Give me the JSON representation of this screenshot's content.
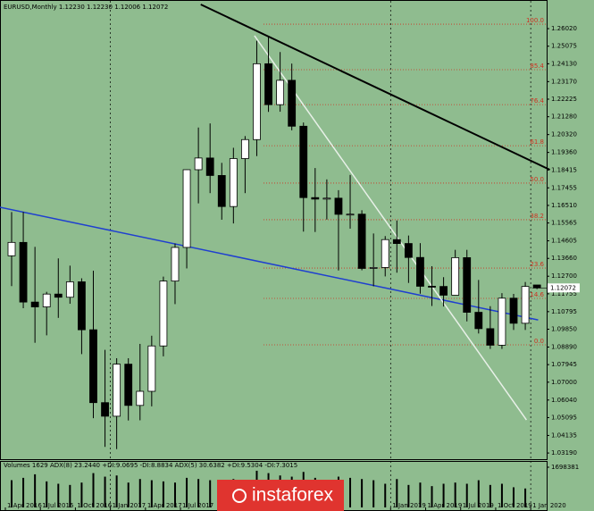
{
  "chart_data": {
    "type": "candlestick",
    "header": "EURUSD,Monthly  1.12230 1.12230 1.12006 1.12072",
    "categories": [
      "1 Apr 2016",
      null,
      null,
      "1 Jul 2016",
      null,
      null,
      "1 Oct 2016",
      null,
      null,
      "1 Jan 2017",
      null,
      null,
      "1 Apr 2017",
      null,
      null,
      "1 Jul 2017",
      null,
      null,
      null,
      null,
      null,
      null,
      null,
      null,
      null,
      null,
      null,
      null,
      null,
      null,
      null,
      null,
      null,
      "1 Jan 2019",
      null,
      null,
      "1 Apr 2019",
      null,
      null,
      "1 Jul 2019",
      null,
      null,
      "1 Oct 2019",
      null,
      null,
      "1 Jan 2020"
    ],
    "open": [
      1.138,
      1.1452,
      1.1131,
      1.1105,
      1.1174,
      1.1157,
      1.124,
      1.0982,
      1.059,
      1.0517,
      1.0797,
      1.0575,
      1.0651,
      1.0895,
      1.1244,
      1.1425,
      1.1843,
      1.1906,
      1.1812,
      1.1645,
      1.1903,
      1.2005,
      1.2413,
      1.2193,
      1.2324,
      1.2077,
      1.1693,
      1.1685,
      1.169,
      1.1603,
      1.1604,
      1.1312,
      1.1317,
      1.1467,
      1.1446,
      1.1371,
      1.1216,
      1.1215,
      1.1168,
      1.137,
      1.1076,
      1.0988,
      1.0899,
      1.1152,
      1.1017,
      1.1223
    ],
    "high": [
      1.1615,
      1.1616,
      1.1428,
      1.1186,
      1.1366,
      1.1327,
      1.1259,
      1.13,
      1.0874,
      1.0829,
      1.0829,
      1.0906,
      1.095,
      1.1268,
      1.1446,
      1.1845,
      1.207,
      1.2092,
      1.188,
      1.1961,
      1.2024,
      1.2537,
      1.2556,
      1.2476,
      1.2414,
      1.2097,
      1.1852,
      1.1791,
      1.1733,
      1.1815,
      1.1625,
      1.15,
      1.1486,
      1.157,
      1.1489,
      1.1448,
      1.1324,
      1.1265,
      1.1412,
      1.1412,
      1.125,
      1.1109,
      1.1179,
      1.1175,
      1.1239,
      1.1223
    ],
    "low": [
      1.1217,
      1.1098,
      1.0912,
      1.0952,
      1.1046,
      1.1122,
      1.0851,
      1.0506,
      1.0352,
      1.034,
      1.0494,
      1.0495,
      1.057,
      1.0839,
      1.112,
      1.1312,
      1.1662,
      1.1717,
      1.1574,
      1.1554,
      1.1717,
      1.1916,
      1.2154,
      1.2155,
      1.2055,
      1.151,
      1.1508,
      1.1575,
      1.1301,
      1.1526,
      1.1302,
      1.1216,
      1.1269,
      1.1289,
      1.1234,
      1.1176,
      1.111,
      1.1107,
      1.1181,
      1.1027,
      1.0962,
      1.0879,
      1.0879,
      1.0981,
      1.0981,
      1.12006
    ],
    "close": [
      1.1452,
      1.1131,
      1.1105,
      1.1174,
      1.1157,
      1.124,
      1.0982,
      1.059,
      1.0517,
      1.0797,
      1.0575,
      1.0651,
      1.0895,
      1.1244,
      1.1425,
      1.1843,
      1.1906,
      1.1812,
      1.1645,
      1.1903,
      1.2005,
      1.2413,
      1.2193,
      1.2324,
      1.2077,
      1.1693,
      1.1685,
      1.169,
      1.1603,
      1.1604,
      1.1312,
      1.1317,
      1.1467,
      1.1446,
      1.1371,
      1.1216,
      1.1215,
      1.1168,
      1.137,
      1.1076,
      1.0988,
      1.0899,
      1.1152,
      1.1017,
      1.1215,
      1.12072
    ],
    "up_color": "#ffffff",
    "down_color": "#000000",
    "ylim": [
      1.0281,
      1.2756
    ],
    "yticks": [
      {
        "value": 1.2602,
        "label": "1.26020"
      },
      {
        "value": 1.25075,
        "label": "1.25075"
      },
      {
        "value": 1.2413,
        "label": "1.24130"
      },
      {
        "value": 1.2317,
        "label": "1.23170"
      },
      {
        "value": 1.22225,
        "label": "1.22225"
      },
      {
        "value": 1.2128,
        "label": "1.21280"
      },
      {
        "value": 1.2032,
        "label": "1.20320"
      },
      {
        "value": 1.1936,
        "label": "1.19360"
      },
      {
        "value": 1.18415,
        "label": "1.18415"
      },
      {
        "value": 1.17455,
        "label": "1.17455"
      },
      {
        "value": 1.1651,
        "label": "1.16510"
      },
      {
        "value": 1.15565,
        "label": "1.15565"
      },
      {
        "value": 1.14605,
        "label": "1.14605"
      },
      {
        "value": 1.1366,
        "label": "1.13660"
      },
      {
        "value": 1.127,
        "label": "1.12700"
      },
      {
        "value": 1.11755,
        "label": "1.11755"
      },
      {
        "value": 1.10795,
        "label": "1.10795"
      },
      {
        "value": 1.0985,
        "label": "1.09850"
      },
      {
        "value": 1.0889,
        "label": "1.08890"
      },
      {
        "value": 1.07945,
        "label": "1.07945"
      },
      {
        "value": 1.07,
        "label": "1.07000"
      },
      {
        "value": 1.0604,
        "label": "1.06040"
      },
      {
        "value": 1.05095,
        "label": "1.05095"
      },
      {
        "value": 1.04135,
        "label": "1.04135"
      },
      {
        "value": 1.0319,
        "label": "1.03190"
      }
    ],
    "current_price": {
      "value": 1.12072,
      "label": "1.12072"
    },
    "fibo_color": "#d03020",
    "fibo": [
      {
        "label": "100.0",
        "price": 1.2626
      },
      {
        "label": "85.4",
        "price": 1.2381
      },
      {
        "label": "76.4",
        "price": 1.2193
      },
      {
        "label": "61.8",
        "price": 1.1972
      },
      {
        "label": "50.0",
        "price": 1.1771
      },
      {
        "label": "38.2",
        "price": 1.1574
      },
      {
        "label": "23.6",
        "price": 1.1314
      },
      {
        "label": "14.6",
        "price": 1.1151
      },
      {
        "label": "0.0",
        "price": 1.0901
      }
    ],
    "trendlines": [
      {
        "color": "#000000",
        "x": [
          16.2,
          46.1
        ],
        "price": [
          1.2732,
          1.1843
        ]
      },
      {
        "color": "#1f3fd0",
        "x": [
          -1,
          45.1
        ],
        "price": [
          1.1641,
          1.1035
        ]
      },
      {
        "color": "#e8f0e8",
        "x": [
          20.8,
          44.1
        ],
        "price": [
          1.2564,
          1.0497
        ]
      }
    ],
    "volume_panel": {
      "label": "Volumes 1629  ADX(8) 23.2440 +DI:9.0695 -DI:8.8834  ADX(5) 30.6382 +DI:9.5304 -DI:7.3015",
      "ylim": [
        0,
        1698381
      ],
      "yticks": [
        1698381
      ],
      "values": [
        1150000,
        1250000,
        1400000,
        1100000,
        1000000,
        950000,
        1050000,
        1450000,
        1300000,
        1350000,
        1050000,
        1200000,
        1150000,
        1100000,
        1050000,
        1250000,
        1200000,
        1150000,
        1050000,
        1200000,
        1000000,
        1550000,
        1450000,
        1350000,
        1300000,
        1500000,
        1250000,
        1100000,
        1300000,
        1250000,
        1200000,
        1150000,
        1000000,
        1200000,
        950000,
        1050000,
        900000,
        1000000,
        1050000,
        1000000,
        1150000,
        950000,
        1000000,
        850000,
        800000,
        1629
      ]
    },
    "logo": "instaforex"
  }
}
